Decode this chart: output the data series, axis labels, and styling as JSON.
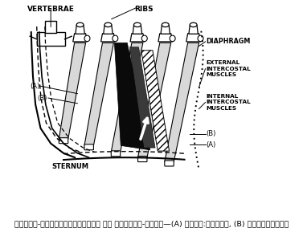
{
  "caption": "चित्र-श्वासोच्छ्वास की क्रिया-विधि—(A) अन्त:श्वास, (B) उच्छ्वास।",
  "labels": {
    "vertebrae": "VERTEBRAE",
    "ribs": "RIBS",
    "diaphragm": "DIAPHRAGM",
    "external": "EXTERNAL\nINTERCOSTAL\nMUSCLES",
    "internal": "INTERNAL\nINTERCOSTAL\nMUSCLES",
    "sternum": "STERNUM",
    "A_left": "(A)",
    "B_left": "(B)",
    "A_right": "(A)",
    "B_right": "(B)"
  },
  "bg_color": "#ffffff",
  "lc": "#000000"
}
